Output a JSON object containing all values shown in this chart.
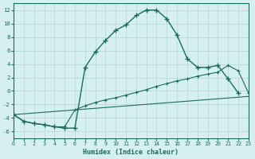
{
  "xlabel": "Humidex (Indice chaleur)",
  "background_color": "#d6f0f0",
  "grid_color": "#b8dada",
  "line_color": "#1a6b5a",
  "xlim": [
    0,
    23
  ],
  "ylim": [
    -7,
    13
  ],
  "xticks": [
    0,
    1,
    2,
    3,
    4,
    5,
    6,
    7,
    8,
    9,
    10,
    11,
    12,
    13,
    14,
    15,
    16,
    17,
    18,
    19,
    20,
    21,
    22,
    23
  ],
  "yticks": [
    -6,
    -4,
    -2,
    0,
    2,
    4,
    6,
    8,
    10,
    12
  ],
  "series1_x": [
    0,
    1,
    2,
    3,
    4,
    5,
    6,
    7,
    8,
    9,
    10,
    11,
    12,
    13,
    14,
    15,
    16,
    17,
    18,
    19,
    20,
    21,
    22
  ],
  "series1_y": [
    -3.5,
    -4.5,
    -4.8,
    -5.0,
    -5.3,
    -5.5,
    -5.5,
    3.5,
    5.8,
    7.5,
    9.0,
    9.8,
    11.2,
    12.0,
    12.0,
    10.7,
    8.3,
    4.8,
    3.5,
    3.5,
    3.8,
    1.8,
    -0.3
  ],
  "series2_x": [
    0,
    1,
    2,
    3,
    4,
    5,
    6,
    7,
    8,
    9,
    10,
    11,
    12,
    13,
    14,
    15,
    16,
    17,
    18,
    19,
    20,
    21,
    22,
    23
  ],
  "series2_y": [
    -3.5,
    -4.5,
    -4.8,
    -5.0,
    -5.3,
    -5.3,
    -2.8,
    -2.2,
    -1.7,
    -1.3,
    -1.0,
    -0.6,
    -0.2,
    0.2,
    0.7,
    1.1,
    1.5,
    1.8,
    2.2,
    2.5,
    2.8,
    3.8,
    3.0,
    -0.3
  ],
  "series3_x": [
    0,
    23
  ],
  "series3_y": [
    -3.5,
    -0.8
  ]
}
